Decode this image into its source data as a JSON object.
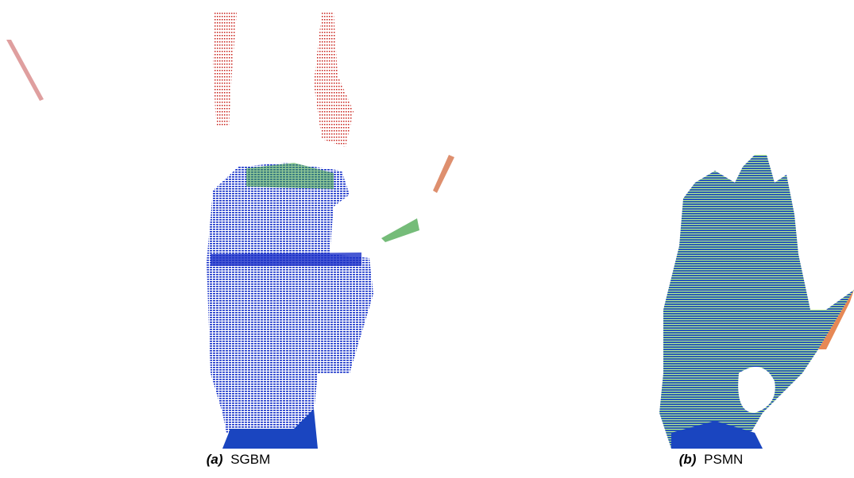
{
  "figures": [
    {
      "label": "(a)",
      "caption": "SGBM"
    },
    {
      "label": "(b)",
      "caption": "PSMN"
    }
  ]
}
